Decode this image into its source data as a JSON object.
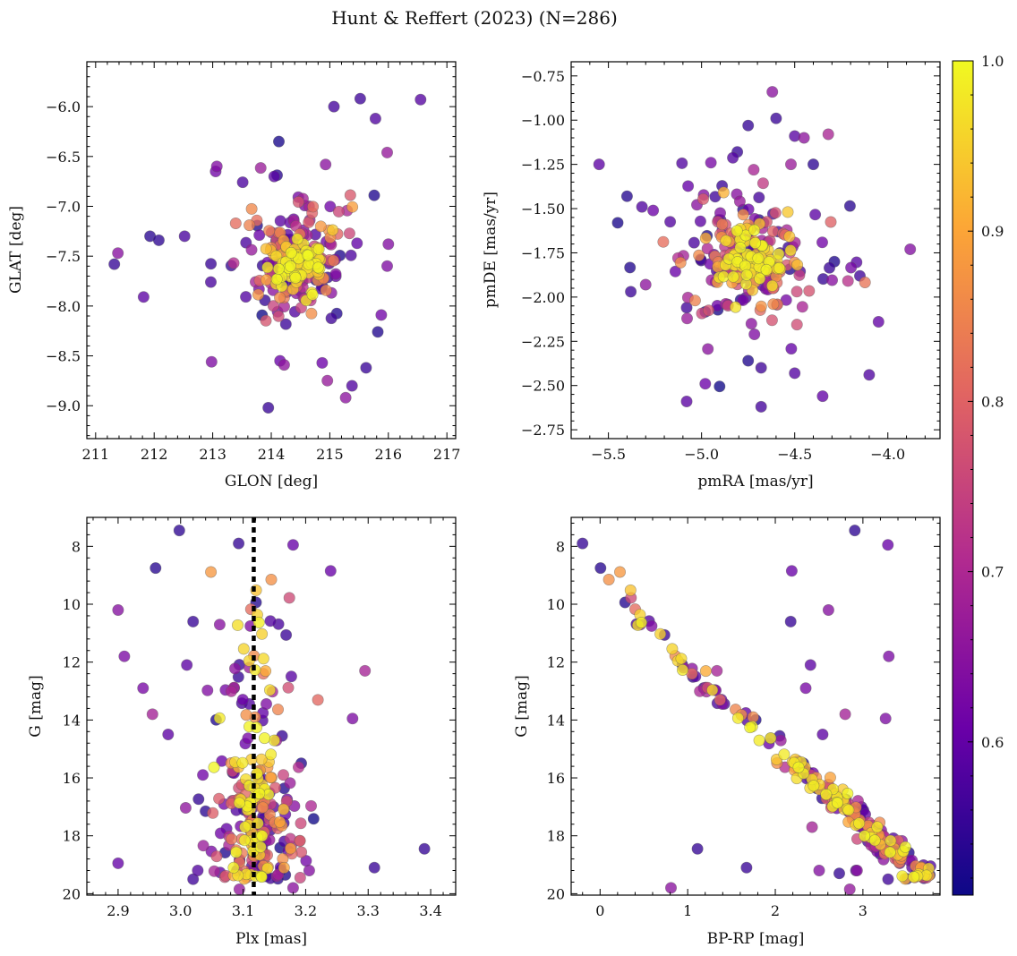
{
  "colors": {
    "colormap": "plasma",
    "cmap_stops": [
      "#0d0887",
      "#6a00a8",
      "#b12a90",
      "#e16462",
      "#fca636",
      "#f0f921"
    ],
    "point_alpha": 0.78,
    "ref_line": "#000000"
  },
  "chart_data": {
    "type": "scatter",
    "title": "Hunt & Reffert (2023) (N=286)",
    "n_points": 286,
    "seed": 286,
    "membership_probability": "color",
    "colorbar": {
      "range": [
        0.51,
        1.0
      ],
      "ticks": [
        0.6,
        0.7,
        0.8,
        0.9,
        1.0
      ],
      "tick_labels": [
        "0.6",
        "0.7",
        "0.8",
        "0.9",
        "1.0"
      ]
    },
    "panels": [
      {
        "id": "sky",
        "xlabel": "GLON [deg]",
        "ylabel": "GLAT [deg]",
        "xlim": [
          210.85,
          217.15
        ],
        "ylim": [
          -9.33,
          -5.55
        ],
        "y_inverted": false,
        "xticks": [
          211,
          212,
          213,
          214,
          215,
          216,
          217
        ],
        "xtick_labels": [
          "211",
          "212",
          "213",
          "214",
          "215",
          "216",
          "217"
        ],
        "yticks": [
          -9.0,
          -8.5,
          -8.0,
          -7.5,
          -7.0,
          -6.5,
          -6.0
        ],
        "ytick_labels": [
          "−9.0",
          "−8.5",
          "−8.0",
          "−7.5",
          "−7.0",
          "−6.5",
          "−6.0"
        ],
        "outliers": [
          [
            211.32,
            -7.58
          ],
          [
            211.38,
            -7.47
          ],
          [
            211.82,
            -7.91
          ],
          [
            211.93,
            -7.3
          ],
          [
            212.08,
            -7.34
          ],
          [
            212.52,
            -7.3
          ],
          [
            212.98,
            -8.56
          ],
          [
            213.07,
            -6.6
          ],
          [
            213.05,
            -6.65
          ],
          [
            214.13,
            -6.35
          ],
          [
            215.07,
            -6.0
          ],
          [
            215.52,
            -5.92
          ],
          [
            216.55,
            -5.93
          ],
          [
            215.78,
            -6.12
          ],
          [
            215.98,
            -6.46
          ],
          [
            215.88,
            -8.09
          ],
          [
            215.82,
            -8.26
          ],
          [
            215.62,
            -8.62
          ],
          [
            215.38,
            -8.8
          ],
          [
            214.87,
            -8.57
          ],
          [
            214.22,
            -8.59
          ],
          [
            214.15,
            -8.55
          ],
          [
            213.95,
            -9.02
          ],
          [
            215.27,
            -8.92
          ],
          [
            214.05,
            -6.7
          ],
          [
            215.98,
            -7.6
          ],
          [
            216.0,
            -7.38
          ]
        ]
      },
      {
        "id": "pm",
        "xlabel": "pmRA [mas/yr]",
        "ylabel": "pmDE [mas/yr]",
        "xlim": [
          -5.7,
          -3.72
        ],
        "ylim": [
          -2.8,
          -0.67
        ],
        "y_inverted": false,
        "xticks": [
          -5.5,
          -5.0,
          -4.5,
          -4.0
        ],
        "xtick_labels": [
          "−5.5",
          "−5.0",
          "−4.5",
          "−4.0"
        ],
        "yticks": [
          -2.75,
          -2.5,
          -2.25,
          -2.0,
          -1.75,
          -1.5,
          -1.25,
          -1.0,
          -0.75
        ],
        "ytick_labels": [
          "−2.75",
          "−2.50",
          "−2.25",
          "−2.00",
          "−1.75",
          "−1.50",
          "−1.25",
          "−1.00",
          "−0.75"
        ],
        "outliers": [
          [
            -5.55,
            -1.25
          ],
          [
            -5.45,
            -1.58
          ],
          [
            -5.4,
            -1.43
          ],
          [
            -5.38,
            -1.97
          ],
          [
            -5.32,
            -1.49
          ],
          [
            -5.3,
            -1.93
          ],
          [
            -5.08,
            -2.59
          ],
          [
            -5.08,
            -2.06
          ],
          [
            -4.98,
            -2.49
          ],
          [
            -4.95,
            -1.24
          ],
          [
            -4.75,
            -1.03
          ],
          [
            -4.72,
            -1.28
          ],
          [
            -4.62,
            -0.84
          ],
          [
            -4.6,
            -0.99
          ],
          [
            -4.52,
            -1.25
          ],
          [
            -4.5,
            -1.09
          ],
          [
            -4.45,
            -1.1
          ],
          [
            -4.4,
            -1.25
          ],
          [
            -4.32,
            -1.08
          ],
          [
            -3.88,
            -1.73
          ],
          [
            -4.05,
            -2.14
          ],
          [
            -4.1,
            -2.44
          ],
          [
            -4.35,
            -2.56
          ],
          [
            -4.5,
            -2.43
          ],
          [
            -4.68,
            -2.62
          ],
          [
            -4.68,
            -2.4
          ],
          [
            -4.75,
            -2.36
          ],
          [
            -4.15,
            -1.88
          ]
        ]
      },
      {
        "id": "plx",
        "xlabel": "Plx [mas]",
        "ylabel": "G [mag]",
        "xlim": [
          2.85,
          3.44
        ],
        "ylim": [
          20.05,
          7.0
        ],
        "y_inverted": true,
        "xticks": [
          2.9,
          3.0,
          3.1,
          3.2,
          3.3,
          3.4
        ],
        "xtick_labels": [
          "2.9",
          "3.0",
          "3.1",
          "3.2",
          "3.3",
          "3.4"
        ],
        "yticks": [
          8,
          10,
          12,
          14,
          16,
          18,
          20
        ],
        "ytick_labels": [
          "8",
          "10",
          "12",
          "14",
          "16",
          "18",
          "20"
        ],
        "ref_line_x": 3.117,
        "outliers": [
          [
            2.9,
            10.2
          ],
          [
            2.91,
            11.8
          ],
          [
            2.96,
            8.75
          ],
          [
            2.998,
            7.45
          ],
          [
            3.01,
            12.1
          ],
          [
            3.02,
            10.6
          ],
          [
            3.18,
            7.95
          ],
          [
            3.24,
            8.85
          ],
          [
            3.275,
            13.95
          ],
          [
            3.295,
            12.3
          ],
          [
            3.39,
            18.45
          ],
          [
            2.9,
            18.95
          ],
          [
            3.02,
            19.5
          ],
          [
            3.09,
            19.2
          ],
          [
            3.18,
            19.8
          ],
          [
            3.31,
            19.1
          ],
          [
            2.955,
            13.8
          ],
          [
            2.94,
            12.9
          ],
          [
            2.98,
            14.5
          ]
        ]
      },
      {
        "id": "cmd",
        "xlabel": "BP-RP [mag]",
        "ylabel": "G [mag]",
        "xlim": [
          -0.33,
          3.88
        ],
        "ylim": [
          20.05,
          7.0
        ],
        "y_inverted": true,
        "xticks": [
          0,
          1,
          2,
          3
        ],
        "xtick_labels": [
          "0",
          "1",
          "2",
          "3"
        ],
        "yticks": [
          8,
          10,
          12,
          14,
          16,
          18,
          20
        ],
        "ytick_labels": [
          "8",
          "10",
          "12",
          "14",
          "16",
          "18",
          "20"
        ],
        "sequence": [
          [
            -0.15,
            7.5
          ],
          [
            0.0,
            8.5
          ],
          [
            0.3,
            10.0
          ],
          [
            0.6,
            11.0
          ],
          [
            1.0,
            12.3
          ],
          [
            1.5,
            13.7
          ],
          [
            1.9,
            14.7
          ],
          [
            2.2,
            15.6
          ],
          [
            2.5,
            16.3
          ],
          [
            2.8,
            17.1
          ],
          [
            3.1,
            17.9
          ],
          [
            3.4,
            18.8
          ],
          [
            3.62,
            19.1
          ]
        ],
        "outliers": [
          [
            2.42,
            17.7
          ],
          [
            2.5,
            19.2
          ],
          [
            2.73,
            19.3
          ],
          [
            2.85,
            19.85
          ],
          [
            2.92,
            19.2
          ],
          [
            2.05,
            14.55
          ],
          [
            -0.2,
            7.9
          ]
        ]
      }
    ]
  }
}
